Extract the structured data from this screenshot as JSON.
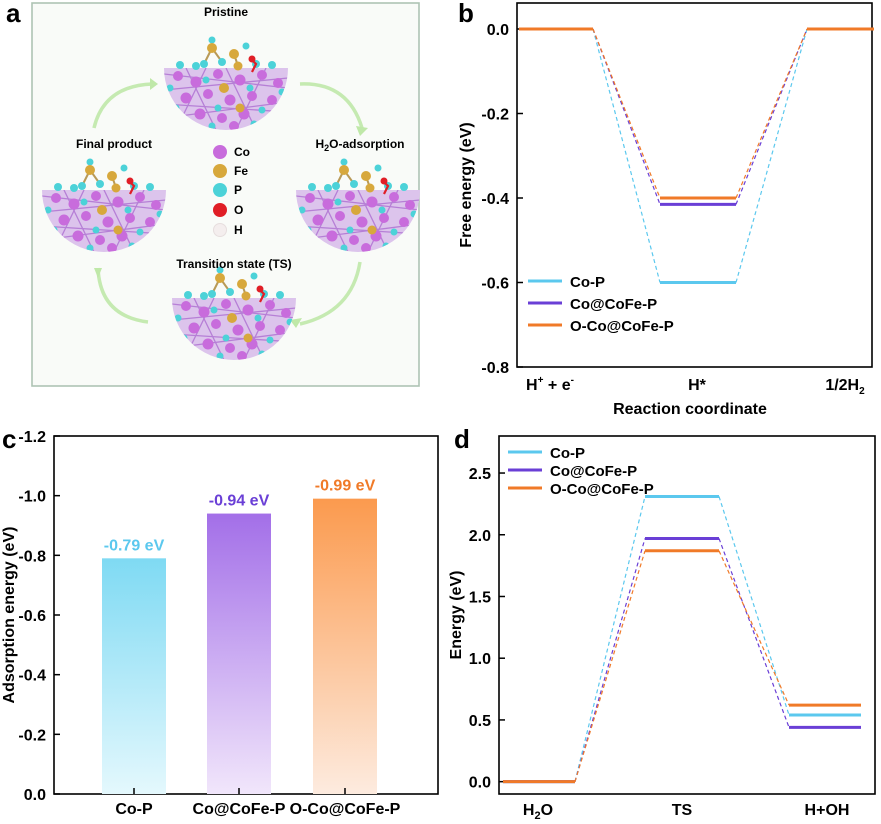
{
  "panel_labels": {
    "a": "a",
    "b": "b",
    "c": "c",
    "d": "d"
  },
  "panel_a": {
    "titles": {
      "pristine": "Pristine",
      "h2o_prefix": "H",
      "h2o_sub": "2",
      "h2o_suffix": "O-adsorption",
      "ts": "Transition state (TS)",
      "final": "Final product"
    },
    "legend": [
      {
        "label": "Co",
        "color": "#c86cdc"
      },
      {
        "label": "Fe",
        "color": "#d7a83c"
      },
      {
        "label": "P",
        "color": "#4cd2d8"
      },
      {
        "label": "O",
        "color": "#e01e26"
      },
      {
        "label": "H",
        "color": "#f4eeee"
      }
    ]
  },
  "colors": {
    "cop": "#5bc8ee",
    "cocofe": "#6a3fd6",
    "ococofe": "#f07a28"
  },
  "chart_data": [
    {
      "type": "line",
      "panel": "b",
      "title": "",
      "xlabel": "Reaction coordinate",
      "ylabel": "Free energy (eV)",
      "ylim": [
        -0.8,
        0.0
      ],
      "yticks": [
        "0.0",
        "-0.2",
        "-0.4",
        "-0.6",
        "-0.8"
      ],
      "categories": [
        "H⁺ + e⁻",
        "H*",
        "1/2H₂"
      ],
      "xtick_labels": {
        "c0_main": "H",
        "c0_sup1": "+",
        "c0_mid": " + e",
        "c0_sup2": "-",
        "c1": "H*",
        "c2_main": "1/2H",
        "c2_sub": "2"
      },
      "series": [
        {
          "name": "Co-P",
          "values": [
            0.0,
            -0.6,
            0.0
          ]
        },
        {
          "name": "Co@CoFe-P",
          "values": [
            0.0,
            -0.415,
            0.0
          ]
        },
        {
          "name": "O-Co@CoFe-P",
          "values": [
            0.0,
            -0.4,
            0.0
          ]
        }
      ],
      "legend_position": "bottom-left"
    },
    {
      "type": "bar",
      "panel": "c",
      "title": "",
      "xlabel": "",
      "ylabel": "Adsorption energy (eV)",
      "ylim": [
        0.0,
        -1.2
      ],
      "yticks": [
        "-1.2",
        "-1.0",
        "-0.8",
        "-0.6",
        "-0.4",
        "-0.2",
        "0.0"
      ],
      "categories": [
        "Co-P",
        "Co@CoFe-P",
        "O-Co@CoFe-P"
      ],
      "values": [
        -0.79,
        -0.94,
        -0.99
      ],
      "data_labels": [
        "-0.79 eV",
        "-0.94 eV",
        "-0.99 eV"
      ]
    },
    {
      "type": "line",
      "panel": "d",
      "title": "",
      "xlabel": "",
      "ylabel": "Energy (eV)",
      "ylim": [
        -0.1,
        2.8
      ],
      "yticks": [
        "0.0",
        "0.5",
        "1.0",
        "1.5",
        "2.0",
        "2.5"
      ],
      "categories": [
        "H₂O",
        "TS",
        "H+OH"
      ],
      "xtick_labels": {
        "c0_main": "H",
        "c0_sub": "2",
        "c0_end": "O",
        "c1": "TS",
        "c2": "H+OH"
      },
      "series": [
        {
          "name": "Co-P",
          "values": [
            0.0,
            2.31,
            0.54
          ]
        },
        {
          "name": "Co@CoFe-P",
          "values": [
            0.0,
            1.97,
            0.44
          ]
        },
        {
          "name": "O-Co@CoFe-P",
          "values": [
            0.0,
            1.87,
            0.62
          ]
        }
      ],
      "legend_position": "top-left"
    }
  ]
}
